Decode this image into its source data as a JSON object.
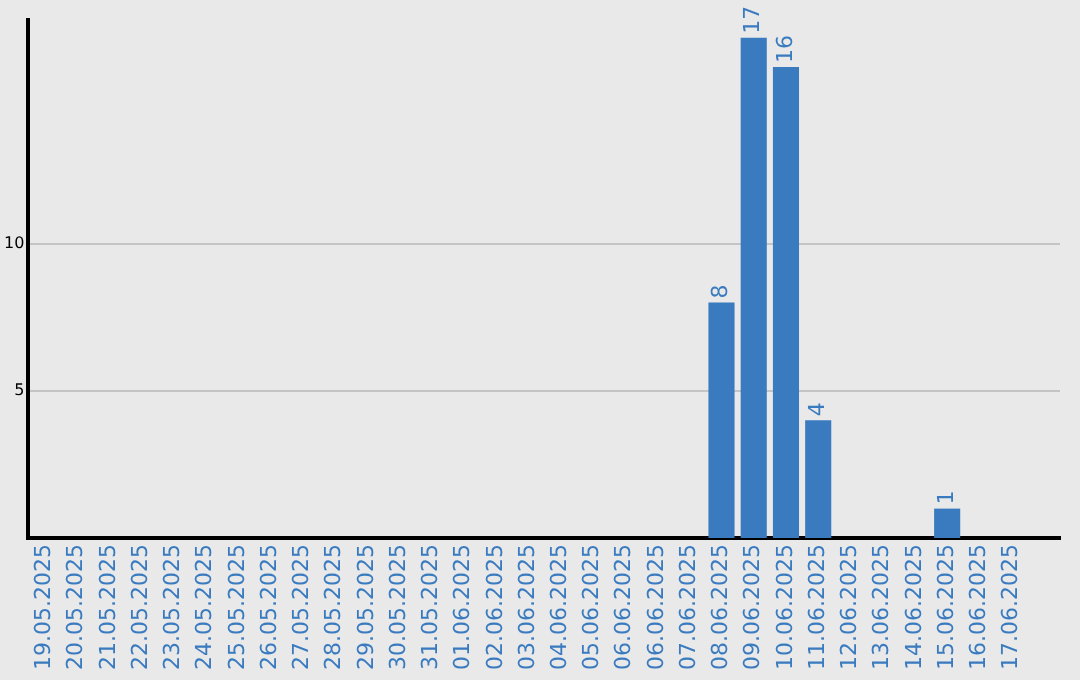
{
  "chart_data": {
    "type": "bar",
    "categories": [
      "19.05.2025",
      "20.05.2025",
      "21.05.2025",
      "22.05.2025",
      "23.05.2025",
      "24.05.2025",
      "25.05.2025",
      "26.05.2025",
      "27.05.2025",
      "28.05.2025",
      "29.05.2025",
      "30.05.2025",
      "31.05.2025",
      "01.06.2025",
      "02.06.2025",
      "03.06.2025",
      "04.06.2025",
      "05.06.2025",
      "06.06.2025",
      "06.06.2025",
      "07.06.2025",
      "08.06.2025",
      "09.06.2025",
      "10.06.2025",
      "11.06.2025",
      "12.06.2025",
      "13.06.2025",
      "14.06.2025",
      "15.06.2025",
      "16.06.2025",
      "17.06.2025",
      null
    ],
    "values": [
      0,
      0,
      0,
      0,
      0,
      0,
      0,
      0,
      0,
      0,
      0,
      0,
      0,
      0,
      0,
      0,
      0,
      0,
      0,
      0,
      0,
      8,
      17,
      16,
      4,
      0,
      0,
      0,
      1,
      0,
      0,
      0
    ],
    "value_labels": [
      null,
      null,
      null,
      null,
      null,
      null,
      null,
      null,
      null,
      null,
      null,
      null,
      null,
      null,
      null,
      null,
      null,
      null,
      null,
      null,
      null,
      "8",
      "17",
      "16",
      "4",
      null,
      null,
      null,
      "1",
      null,
      null,
      null
    ],
    "color": "#3a7bc0",
    "ylim": [
      0,
      17.6
    ],
    "yticks": [
      5,
      10
    ],
    "grid": "y",
    "legend": false
  }
}
